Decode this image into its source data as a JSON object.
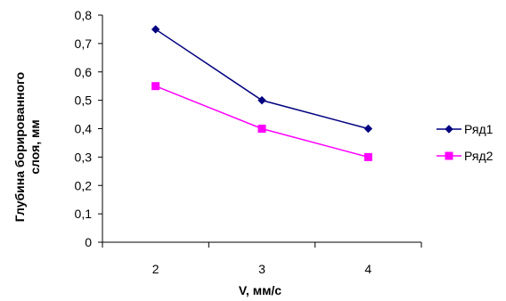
{
  "chart_data": {
    "type": "line",
    "title": "",
    "xlabel": "V, мм/с",
    "ylabel_lines": [
      "Глубина борированного",
      "слоя, мм"
    ],
    "categories": [
      "2",
      "3",
      "4"
    ],
    "ylim": [
      0,
      0.8
    ],
    "y_ticks": [
      "0",
      "0,1",
      "0,2",
      "0,3",
      "0,4",
      "0,5",
      "0,6",
      "0,7",
      "0,8"
    ],
    "grid": false,
    "legend_position": "right",
    "series": [
      {
        "name": "Ряд1",
        "values": [
          0.75,
          0.5,
          0.4
        ],
        "color": "#000080",
        "marker": "diamond"
      },
      {
        "name": "Ряд2",
        "values": [
          0.55,
          0.4,
          0.3
        ],
        "color": "#ff00ff",
        "marker": "square"
      }
    ]
  }
}
